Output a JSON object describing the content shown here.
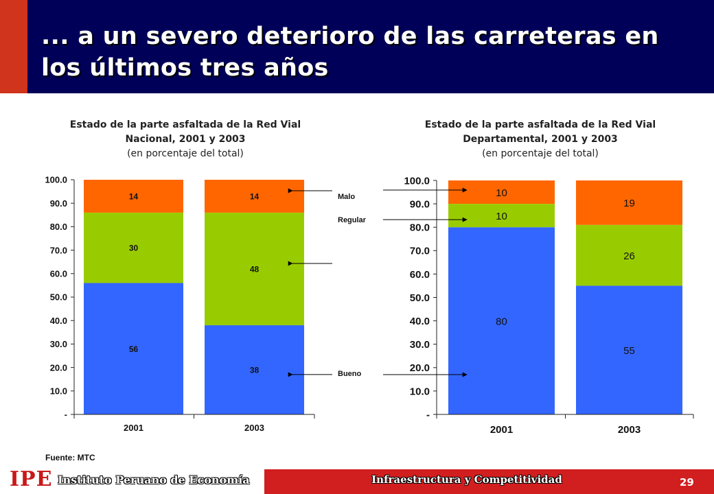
{
  "slide": {
    "title": "... a un severo deterioro de las carreteras en los últimos tres años",
    "source": "Fuente: MTC",
    "footer": {
      "logo": "IPE",
      "institute": "Instituto Peruano de Economía",
      "section": "Infraestructura y Competitividad",
      "page_number": "29"
    },
    "colors": {
      "title_band": "#000058",
      "accent": "#d0341c",
      "footer_band": "#d11f1f"
    }
  },
  "chart_data": [
    {
      "type": "bar",
      "stacked": true,
      "title": "Estado de la parte asfaltada de la Red Vial Nacional, 2001 y 2003",
      "subtitle": "(en porcentaje del total)",
      "categories": [
        "2001",
        "2003"
      ],
      "series": [
        {
          "name": "Bueno",
          "values": [
            56,
            38
          ],
          "labels": [
            "56",
            "38"
          ],
          "color": "#3366ff"
        },
        {
          "name": "Regular",
          "values": [
            30,
            48
          ],
          "labels": [
            "30",
            "48"
          ],
          "color": "#99cc00"
        },
        {
          "name": "Malo",
          "values": [
            14,
            14
          ],
          "labels": [
            "14",
            "14"
          ],
          "color": "#ff6600"
        }
      ],
      "ylim": [
        0,
        100
      ],
      "ytick_labels": [
        "-",
        "10.0",
        "20.0",
        "30.0",
        "40.0",
        "50.0",
        "60.0",
        "70.0",
        "80.0",
        "90.0",
        "100.0"
      ],
      "grid": false
    },
    {
      "type": "bar",
      "stacked": true,
      "title": "Estado de la parte asfaltada de la Red Vial Departamental, 2001 y 2003",
      "subtitle": "(en porcentaje del total)",
      "categories": [
        "2001",
        "2003"
      ],
      "series": [
        {
          "name": "Bueno",
          "values": [
            80,
            55
          ],
          "labels": [
            "80",
            "55"
          ],
          "color": "#3366ff"
        },
        {
          "name": "Regular",
          "values": [
            10,
            26
          ],
          "labels": [
            "10",
            "26"
          ],
          "color": "#99cc00"
        },
        {
          "name": "Malo",
          "values": [
            10,
            19
          ],
          "labels": [
            "10",
            "19"
          ],
          "color": "#ff6600"
        }
      ],
      "ylim": [
        0,
        100
      ],
      "ytick_labels": [
        "-",
        "10.0",
        "20.0",
        "30.0",
        "40.0",
        "50.0",
        "60.0",
        "70.0",
        "80.0",
        "90.0",
        "100.0"
      ],
      "grid": false
    }
  ],
  "legend": {
    "labels": [
      "Malo",
      "Regular",
      "Bueno"
    ],
    "placement": "between charts"
  }
}
